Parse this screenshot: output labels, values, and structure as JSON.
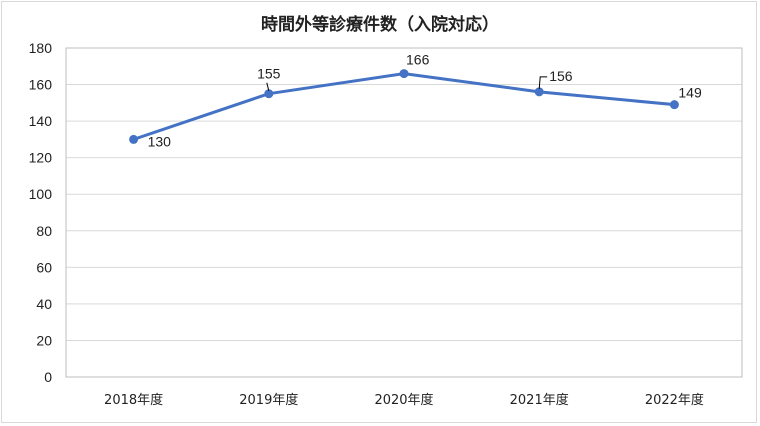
{
  "chart_data": {
    "type": "line",
    "title": "時間外等診療件数（入院対応）",
    "categories": [
      "2018年度",
      "2019年度",
      "2020年度",
      "2021年度",
      "2022年度"
    ],
    "series": [
      {
        "values": [
          130,
          155,
          166,
          156,
          149
        ],
        "color": "#4472c4"
      }
    ],
    "ylim": [
      0,
      180
    ],
    "yticks": [
      0,
      20,
      40,
      60,
      80,
      100,
      120,
      140,
      160,
      180
    ],
    "grid": true,
    "legend": "none",
    "data_labels": true
  }
}
